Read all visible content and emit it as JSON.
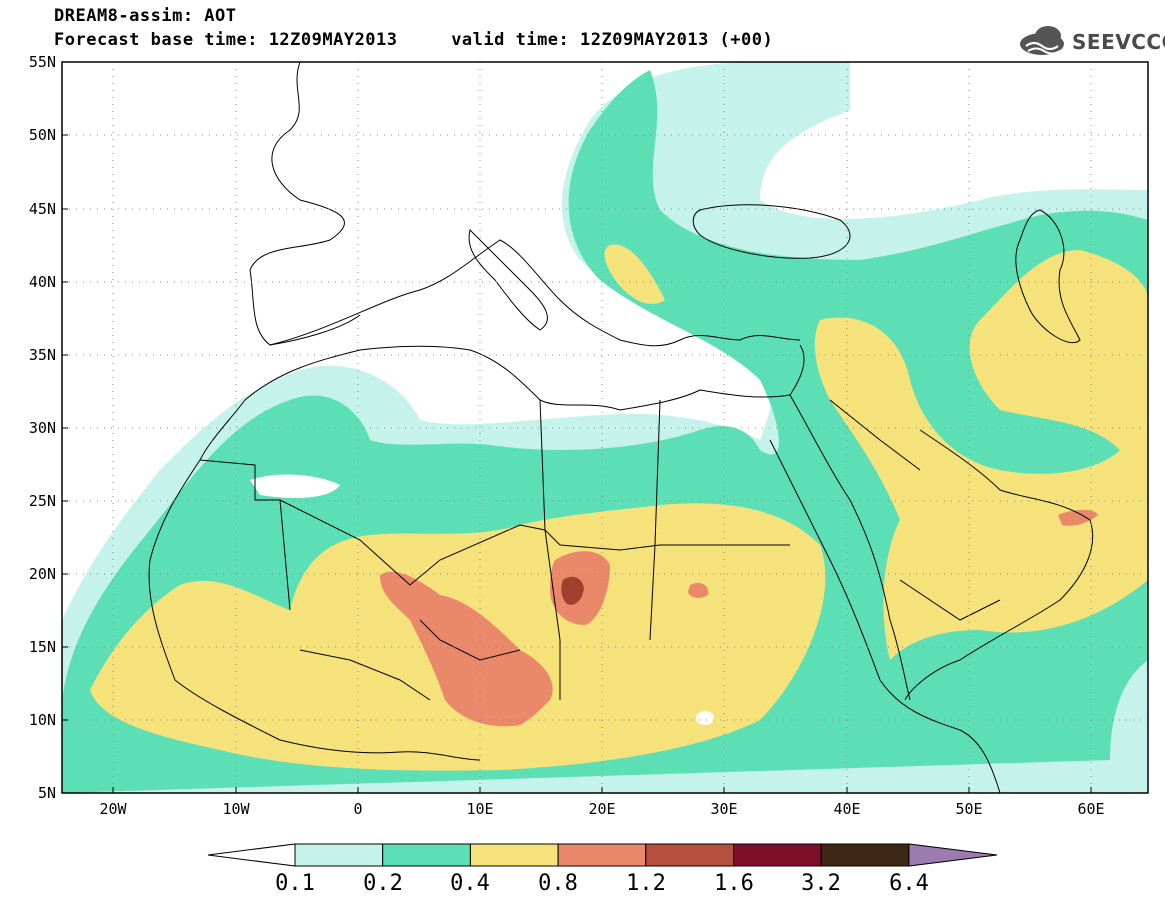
{
  "header": {
    "title_line1": "DREAM8-assim: AOT",
    "title_line2": "Forecast base time: 12Z09MAY2013     valid time: 12Z09MAY2013 (+00)",
    "logo_text": "SEEVCCC"
  },
  "map": {
    "lat_ticks": [
      "55N",
      "50N",
      "45N",
      "40N",
      "35N",
      "30N",
      "25N",
      "20N",
      "15N",
      "10N",
      "5N"
    ],
    "lon_ticks": [
      "20W",
      "10W",
      "0",
      "10E",
      "20E",
      "30E",
      "40E",
      "50E",
      "60E"
    ],
    "lon_range": [
      -25,
      65
    ],
    "lat_range": [
      5,
      55
    ],
    "grid": "dotted"
  },
  "colorbar": {
    "levels": [
      "0.1",
      "0.2",
      "0.4",
      "0.8",
      "1.2",
      "1.6",
      "3.2",
      "6.4"
    ],
    "colors": [
      "#c6f2ec",
      "#5ddfb6",
      "#f6e27a",
      "#e9896a",
      "#b85040",
      "#7c0f2a",
      "#3f2716",
      "#9b7bb0"
    ]
  }
}
